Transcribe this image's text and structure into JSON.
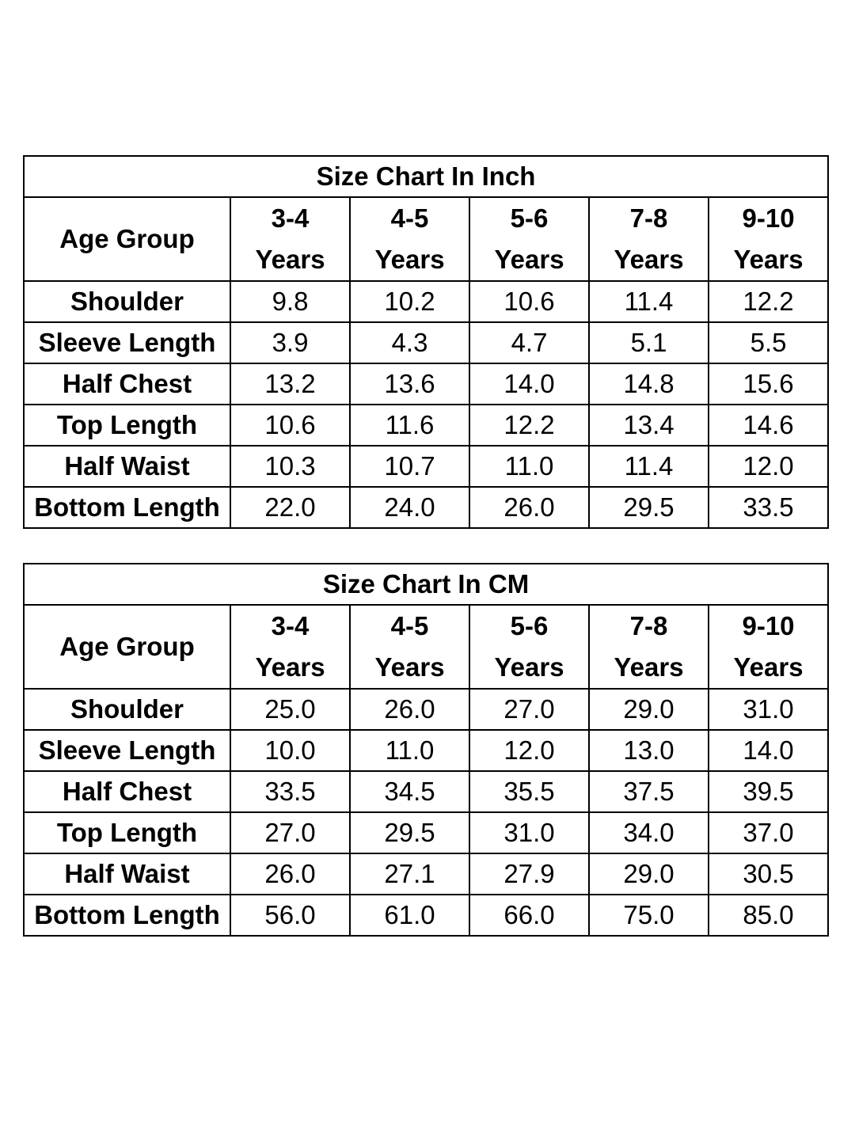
{
  "size_chart": {
    "age_label": "Age Group",
    "age_groups": [
      {
        "range": "3-4",
        "unit": "Years"
      },
      {
        "range": "4-5",
        "unit": "Years"
      },
      {
        "range": "5-6",
        "unit": "Years"
      },
      {
        "range": "7-8",
        "unit": "Years"
      },
      {
        "range": "9-10",
        "unit": "Years"
      }
    ],
    "tables": [
      {
        "title": "Size Chart In Inch",
        "rows": [
          {
            "label": "Shoulder",
            "values": [
              "9.8",
              "10.2",
              "10.6",
              "11.4",
              "12.2"
            ]
          },
          {
            "label": "Sleeve Length",
            "values": [
              "3.9",
              "4.3",
              "4.7",
              "5.1",
              "5.5"
            ]
          },
          {
            "label": "Half Chest",
            "values": [
              "13.2",
              "13.6",
              "14.0",
              "14.8",
              "15.6"
            ]
          },
          {
            "label": "Top Length",
            "values": [
              "10.6",
              "11.6",
              "12.2",
              "13.4",
              "14.6"
            ]
          },
          {
            "label": "Half Waist",
            "values": [
              "10.3",
              "10.7",
              "11.0",
              "11.4",
              "12.0"
            ]
          },
          {
            "label": "Bottom Length",
            "values": [
              "22.0",
              "24.0",
              "26.0",
              "29.5",
              "33.5"
            ]
          }
        ]
      },
      {
        "title": "Size Chart In CM",
        "rows": [
          {
            "label": "Shoulder",
            "values": [
              "25.0",
              "26.0",
              "27.0",
              "29.0",
              "31.0"
            ]
          },
          {
            "label": "Sleeve Length",
            "values": [
              "10.0",
              "11.0",
              "12.0",
              "13.0",
              "14.0"
            ]
          },
          {
            "label": "Half Chest",
            "values": [
              "33.5",
              "34.5",
              "35.5",
              "37.5",
              "39.5"
            ]
          },
          {
            "label": "Top Length",
            "values": [
              "27.0",
              "29.5",
              "31.0",
              "34.0",
              "37.0"
            ]
          },
          {
            "label": "Half Waist",
            "values": [
              "26.0",
              "27.1",
              "27.9",
              "29.0",
              "30.5"
            ]
          },
          {
            "label": "Bottom Length",
            "values": [
              "56.0",
              "61.0",
              "66.0",
              "75.0",
              "85.0"
            ]
          }
        ]
      }
    ]
  }
}
